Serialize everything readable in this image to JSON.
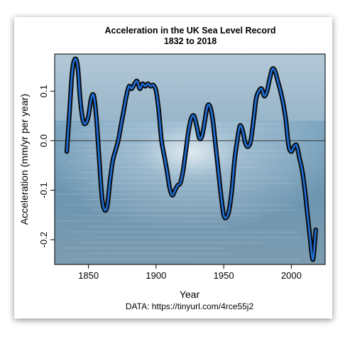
{
  "chart_data": {
    "type": "line",
    "title": "Acceleration in the UK Sea Level Record",
    "subtitle": "1832 to 2018",
    "xlabel": "Year",
    "ylabel": "Acceleration (mm/yr per year)",
    "source": "DATA: https://tinyurl.com/4rce55j2",
    "xlim": [
      1825,
      2025
    ],
    "ylim": [
      -0.25,
      0.175
    ],
    "x_ticks": [
      1850,
      1900,
      1950,
      2000
    ],
    "y_ticks": [
      -0.2,
      -0.1,
      0.0,
      0.1
    ],
    "y_tick_labels": [
      "-0.2",
      "-0.1",
      "0.0",
      "0.1"
    ],
    "x_tick_labels": [
      "1850",
      "1900",
      "1950",
      "2000"
    ],
    "reference_line": 0.0,
    "grid": false,
    "background": "sea-photo",
    "colors": {
      "line_outer": "#0a0a0a",
      "line_inner": "#1f6fd6",
      "sky": "#9fb9cc",
      "sea": "#6f98b4",
      "zero_line": "#333333"
    },
    "series": [
      {
        "x": [
          1834,
          1836,
          1838,
          1840,
          1842,
          1844,
          1846,
          1848,
          1850,
          1852,
          1854,
          1856,
          1858,
          1860,
          1862,
          1864,
          1866,
          1868,
          1870,
          1872,
          1874,
          1876,
          1878,
          1880,
          1882,
          1884,
          1886,
          1888,
          1890,
          1892,
          1894,
          1896,
          1898,
          1900,
          1902,
          1904,
          1906,
          1908,
          1910,
          1912,
          1914,
          1916,
          1918,
          1920,
          1922,
          1924,
          1926,
          1928,
          1930,
          1932,
          1934,
          1936,
          1938,
          1940,
          1942,
          1944,
          1946,
          1948,
          1950,
          1952,
          1954,
          1956,
          1958,
          1960,
          1962,
          1964,
          1966,
          1968,
          1970,
          1972,
          1974,
          1976,
          1978,
          1980,
          1982,
          1984,
          1986,
          1988,
          1990,
          1992,
          1994,
          1996,
          1998,
          2000,
          2002,
          2004,
          2006,
          2008,
          2010,
          2012,
          2014,
          2016,
          2018
        ],
        "y": [
          -0.022,
          0.06,
          0.14,
          0.165,
          0.15,
          0.08,
          0.04,
          0.035,
          0.05,
          0.085,
          0.09,
          0.04,
          -0.04,
          -0.115,
          -0.14,
          -0.13,
          -0.08,
          -0.04,
          -0.02,
          0.0,
          0.03,
          0.06,
          0.09,
          0.11,
          0.105,
          0.115,
          0.12,
          0.105,
          0.115,
          0.11,
          0.115,
          0.11,
          0.112,
          0.1,
          0.06,
          0.0,
          -0.03,
          -0.06,
          -0.095,
          -0.11,
          -0.1,
          -0.09,
          -0.085,
          -0.06,
          -0.02,
          0.02,
          0.045,
          0.05,
          0.03,
          0.005,
          0.01,
          0.04,
          0.07,
          0.068,
          0.04,
          -0.01,
          -0.06,
          -0.11,
          -0.15,
          -0.155,
          -0.14,
          -0.1,
          -0.04,
          0.0,
          0.03,
          0.02,
          -0.005,
          -0.012,
          0.0,
          0.04,
          0.085,
          0.1,
          0.105,
          0.09,
          0.1,
          0.125,
          0.145,
          0.14,
          0.12,
          0.1,
          0.075,
          0.04,
          -0.01,
          -0.022,
          -0.012,
          -0.01,
          -0.035,
          -0.06,
          -0.1,
          -0.15,
          -0.2,
          -0.24,
          -0.18
        ]
      }
    ]
  }
}
